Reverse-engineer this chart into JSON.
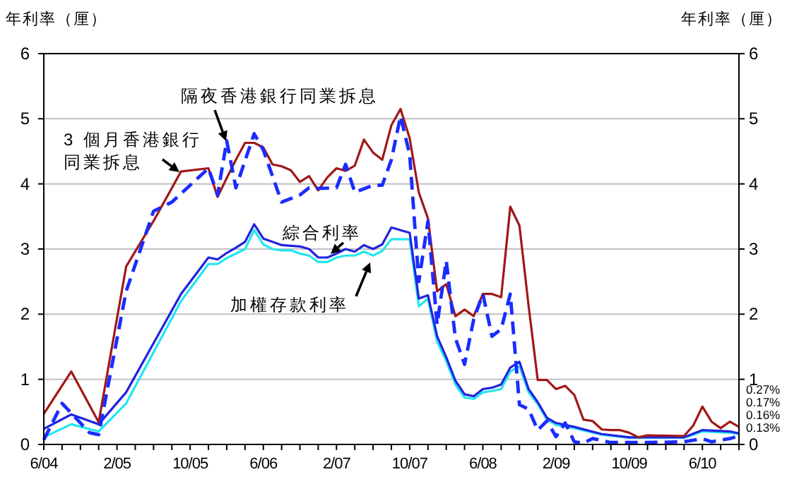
{
  "chart_data": {
    "type": "line",
    "ylabel": "年利率（厘）",
    "y2label": "年利率（厘）",
    "xlim": [
      "2004-06",
      "2010-10"
    ],
    "xticks": [
      {
        "value": "2004-06",
        "label": "6/04"
      },
      {
        "value": "2004-08",
        "label": null
      },
      {
        "value": "2004-10",
        "label": null
      },
      {
        "value": "2004-12",
        "label": null
      },
      {
        "value": "2005-02",
        "label": "2/05"
      },
      {
        "value": "2005-04",
        "label": null
      },
      {
        "value": "2005-06",
        "label": null
      },
      {
        "value": "2005-08",
        "label": null
      },
      {
        "value": "2005-10",
        "label": "10/05"
      },
      {
        "value": "2005-12",
        "label": null
      },
      {
        "value": "2006-02",
        "label": null
      },
      {
        "value": "2006-04",
        "label": null
      },
      {
        "value": "2006-06",
        "label": "6/06"
      },
      {
        "value": "2006-08",
        "label": null
      },
      {
        "value": "2006-10",
        "label": null
      },
      {
        "value": "2006-12",
        "label": null
      },
      {
        "value": "2007-02",
        "label": "2/07"
      },
      {
        "value": "2007-04",
        "label": null
      },
      {
        "value": "2007-06",
        "label": null
      },
      {
        "value": "2007-08",
        "label": null
      },
      {
        "value": "2007-10",
        "label": "10/07"
      },
      {
        "value": "2007-12",
        "label": null
      },
      {
        "value": "2008-02",
        "label": null
      },
      {
        "value": "2008-04",
        "label": null
      },
      {
        "value": "2008-06",
        "label": "6/08"
      },
      {
        "value": "2008-08",
        "label": null
      },
      {
        "value": "2008-10",
        "label": null
      },
      {
        "value": "2008-12",
        "label": null
      },
      {
        "value": "2009-02",
        "label": "2/09"
      },
      {
        "value": "2009-04",
        "label": null
      },
      {
        "value": "2009-06",
        "label": null
      },
      {
        "value": "2009-08",
        "label": null
      },
      {
        "value": "2009-10",
        "label": "10/09"
      },
      {
        "value": "2009-12",
        "label": null
      },
      {
        "value": "2010-02",
        "label": null
      },
      {
        "value": "2010-04",
        "label": null
      },
      {
        "value": "2010-06",
        "label": "6/10"
      },
      {
        "value": "2010-08",
        "label": null
      },
      {
        "value": "2010-10",
        "label": null
      }
    ],
    "ylim": [
      0,
      6
    ],
    "yticks": [
      0,
      1,
      2,
      3,
      4,
      5,
      6
    ],
    "y2lim": [
      0,
      6
    ],
    "y2ticks": [
      0,
      1,
      2,
      3,
      4,
      5,
      6
    ],
    "grid": "y",
    "marker": "none",
    "annotations": [
      "0.27%",
      "0.17%",
      "0.16%",
      "0.13%"
    ],
    "series": [
      {
        "name": "3 個月香港銀行同業拆息",
        "color": "#a01818",
        "line_style": "solid",
        "x": [
          "2004-06",
          "2004-09",
          "2004-12",
          "2005-03",
          "2005-06",
          "2005-09",
          "2005-12",
          "2006-01",
          "2006-02",
          "2006-03",
          "2006-04",
          "2006-05",
          "2006-06",
          "2006-07",
          "2006-08",
          "2006-09",
          "2006-10",
          "2006-11",
          "2006-12",
          "2007-01",
          "2007-02",
          "2007-03",
          "2007-04",
          "2007-05",
          "2007-06",
          "2007-07",
          "2007-08",
          "2007-09",
          "2007-10",
          "2007-11",
          "2007-12",
          "2008-01",
          "2008-02",
          "2008-03",
          "2008-04",
          "2008-05",
          "2008-06",
          "2008-07",
          "2008-08",
          "2008-09",
          "2008-10",
          "2008-11",
          "2008-12",
          "2009-01",
          "2009-02",
          "2009-03",
          "2009-04",
          "2009-05",
          "2009-06",
          "2009-07",
          "2009-08",
          "2009-09",
          "2009-10",
          "2009-11",
          "2009-12",
          "2010-04",
          "2010-05",
          "2010-06",
          "2010-07",
          "2010-08",
          "2010-09",
          "2010-10"
        ],
        "values": [
          0.47,
          1.12,
          0.34,
          2.73,
          3.43,
          4.19,
          4.24,
          3.8,
          4.09,
          4.37,
          4.63,
          4.63,
          4.56,
          4.3,
          4.27,
          4.21,
          4.03,
          4.12,
          3.9,
          4.1,
          4.24,
          4.2,
          4.28,
          4.68,
          4.48,
          4.37,
          4.9,
          5.15,
          4.7,
          3.87,
          3.47,
          2.35,
          2.46,
          1.97,
          2.07,
          1.97,
          2.31,
          2.31,
          2.26,
          3.65,
          3.36,
          2.13,
          0.99,
          0.99,
          0.85,
          0.9,
          0.76,
          0.38,
          0.36,
          0.23,
          0.22,
          0.22,
          0.18,
          0.11,
          0.14,
          0.13,
          0.29,
          0.58,
          0.35,
          0.25,
          0.35,
          0.27
        ]
      },
      {
        "name": "隔夜香港銀行同業拆息",
        "color": "#1a2cff",
        "line_style": "dashed",
        "x": [
          "2004-06",
          "2004-08",
          "2004-11",
          "2004-12",
          "2005-03",
          "2005-06",
          "2005-08",
          "2005-12",
          "2006-01",
          "2006-02",
          "2006-03",
          "2006-05",
          "2006-06",
          "2006-08",
          "2006-10",
          "2006-11",
          "2006-12",
          "2007-02",
          "2007-03",
          "2007-04",
          "2007-06",
          "2007-07",
          "2007-08",
          "2007-09",
          "2007-10",
          "2007-11",
          "2007-12",
          "2008-01",
          "2008-02",
          "2008-03",
          "2008-04",
          "2008-05",
          "2008-06",
          "2008-07",
          "2008-08",
          "2008-09",
          "2008-10",
          "2008-11",
          "2008-12",
          "2009-01",
          "2009-02",
          "2009-03",
          "2009-04",
          "2009-05",
          "2009-06",
          "2009-08",
          "2009-12",
          "2010-04",
          "2010-06",
          "2010-07",
          "2010-09",
          "2010-10"
        ],
        "values": [
          0.07,
          0.63,
          0.18,
          0.15,
          2.35,
          3.58,
          3.72,
          4.24,
          3.83,
          4.66,
          3.94,
          4.77,
          4.52,
          3.72,
          3.83,
          3.94,
          3.93,
          3.94,
          4.3,
          3.87,
          3.98,
          3.98,
          4.37,
          5.04,
          4.45,
          2.5,
          3.43,
          1.84,
          2.82,
          1.63,
          1.23,
          1.92,
          2.31,
          1.66,
          1.77,
          2.31,
          0.61,
          0.54,
          0.22,
          0.36,
          0.12,
          0.33,
          0.04,
          0.02,
          0.09,
          0.03,
          0.03,
          0.04,
          0.09,
          0.04,
          0.09,
          0.13
        ]
      },
      {
        "name": "綜合利率",
        "color": "#2222e0",
        "line_style": "solid",
        "x": [
          "2004-06",
          "2004-09",
          "2004-12",
          "2005-03",
          "2005-09",
          "2005-12",
          "2006-01",
          "2006-02",
          "2006-03",
          "2006-04",
          "2006-05",
          "2006-06",
          "2006-07",
          "2006-08",
          "2006-09",
          "2006-10",
          "2006-11",
          "2006-12",
          "2007-01",
          "2007-02",
          "2007-03",
          "2007-04",
          "2007-05",
          "2007-06",
          "2007-07",
          "2007-08",
          "2007-09",
          "2007-10",
          "2007-11",
          "2007-12",
          "2008-01",
          "2008-02",
          "2008-03",
          "2008-04",
          "2008-05",
          "2008-06",
          "2008-07",
          "2008-08",
          "2008-09",
          "2008-10",
          "2008-11",
          "2008-12",
          "2009-01",
          "2009-02",
          "2009-04",
          "2009-07",
          "2009-10",
          "2010-04",
          "2010-06",
          "2010-09",
          "2010-10"
        ],
        "values": [
          0.24,
          0.46,
          0.31,
          0.8,
          2.31,
          2.87,
          2.84,
          2.94,
          3.02,
          3.11,
          3.38,
          3.16,
          3.11,
          3.06,
          3.05,
          3.04,
          3.0,
          2.87,
          2.87,
          2.93,
          3.0,
          2.96,
          3.06,
          3.0,
          3.07,
          3.33,
          3.29,
          3.25,
          2.24,
          2.29,
          1.66,
          1.34,
          0.98,
          0.77,
          0.74,
          0.85,
          0.87,
          0.92,
          1.18,
          1.27,
          0.85,
          0.65,
          0.41,
          0.33,
          0.27,
          0.16,
          0.11,
          0.11,
          0.22,
          0.2,
          0.17
        ]
      },
      {
        "name": "加權存款利率",
        "color": "#22e6f0",
        "line_style": "solid",
        "x": [
          "2004-06",
          "2004-09",
          "2004-12",
          "2005-03",
          "2005-09",
          "2005-12",
          "2006-01",
          "2006-02",
          "2006-03",
          "2006-04",
          "2006-05",
          "2006-06",
          "2006-07",
          "2006-08",
          "2006-09",
          "2006-10",
          "2006-11",
          "2006-12",
          "2007-01",
          "2007-02",
          "2007-03",
          "2007-04",
          "2007-05",
          "2007-06",
          "2007-07",
          "2007-08",
          "2007-09",
          "2007-10",
          "2007-11",
          "2007-12",
          "2008-01",
          "2008-02",
          "2008-03",
          "2008-04",
          "2008-05",
          "2008-06",
          "2008-07",
          "2008-08",
          "2008-09",
          "2008-10",
          "2008-11",
          "2008-12",
          "2009-01",
          "2009-02",
          "2009-04",
          "2009-07",
          "2009-10",
          "2010-04",
          "2010-06",
          "2010-09",
          "2010-10"
        ],
        "values": [
          0.11,
          0.31,
          0.2,
          0.63,
          2.2,
          2.77,
          2.77,
          2.86,
          2.93,
          3.0,
          3.29,
          3.07,
          3.0,
          2.98,
          2.98,
          2.93,
          2.9,
          2.8,
          2.8,
          2.87,
          2.9,
          2.9,
          2.96,
          2.9,
          2.97,
          3.15,
          3.15,
          3.15,
          2.12,
          2.24,
          1.58,
          1.28,
          0.92,
          0.72,
          0.7,
          0.8,
          0.82,
          0.85,
          1.12,
          1.2,
          0.8,
          0.62,
          0.38,
          0.3,
          0.25,
          0.15,
          0.1,
          0.1,
          0.2,
          0.18,
          0.16
        ]
      }
    ]
  }
}
